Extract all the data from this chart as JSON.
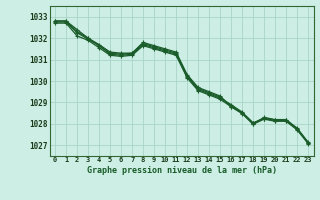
{
  "bg_color": "#cceee4",
  "grid_color": "#aad4c8",
  "line_color": "#1a5c2a",
  "x_values": [
    0,
    1,
    2,
    3,
    4,
    5,
    6,
    7,
    8,
    9,
    10,
    11,
    12,
    13,
    14,
    15,
    16,
    17,
    18,
    19,
    20,
    21,
    22,
    23
  ],
  "series": [
    [
      1032.8,
      1032.8,
      1032.4,
      1032.0,
      1031.7,
      1031.35,
      1031.3,
      1031.3,
      1031.8,
      1031.65,
      1031.5,
      1031.35,
      1030.3,
      1029.7,
      1029.5,
      1029.3,
      1028.8,
      1028.5,
      1028.0,
      1028.3,
      1028.2,
      1028.2,
      1027.8,
      1027.15
    ],
    [
      1032.8,
      1032.8,
      1032.3,
      1032.0,
      1031.65,
      1031.25,
      1031.2,
      1031.25,
      1031.7,
      1031.55,
      1031.4,
      1031.25,
      1030.2,
      1029.6,
      1029.4,
      1029.2,
      1028.9,
      1028.55,
      1028.05,
      1028.25,
      1028.15,
      1028.15,
      1027.75,
      1027.1
    ],
    [
      1032.75,
      1032.75,
      1032.25,
      1031.95,
      1031.65,
      1031.3,
      1031.25,
      1031.3,
      1031.75,
      1031.6,
      1031.45,
      1031.3,
      1030.25,
      1029.65,
      1029.45,
      1029.25,
      1028.85,
      1028.52,
      1028.02,
      1028.28,
      1028.18,
      1028.18,
      1027.78,
      1027.12
    ],
    [
      1032.7,
      1032.7,
      1032.1,
      1031.9,
      1031.55,
      1031.2,
      1031.15,
      1031.2,
      1031.65,
      1031.5,
      1031.35,
      1031.2,
      1030.15,
      1029.55,
      1029.35,
      1029.15,
      1028.8,
      1028.48,
      1027.98,
      1028.22,
      1028.12,
      1028.12,
      1027.72,
      1027.08
    ]
  ],
  "ylim": [
    1026.5,
    1033.5
  ],
  "yticks": [
    1027,
    1028,
    1029,
    1030,
    1031,
    1032,
    1033
  ],
  "xlim": [
    -0.5,
    23.5
  ],
  "xticks": [
    0,
    1,
    2,
    3,
    4,
    5,
    6,
    7,
    8,
    9,
    10,
    11,
    12,
    13,
    14,
    15,
    16,
    17,
    18,
    19,
    20,
    21,
    22,
    23
  ],
  "xlabel": "Graphe pression niveau de la mer (hPa)"
}
